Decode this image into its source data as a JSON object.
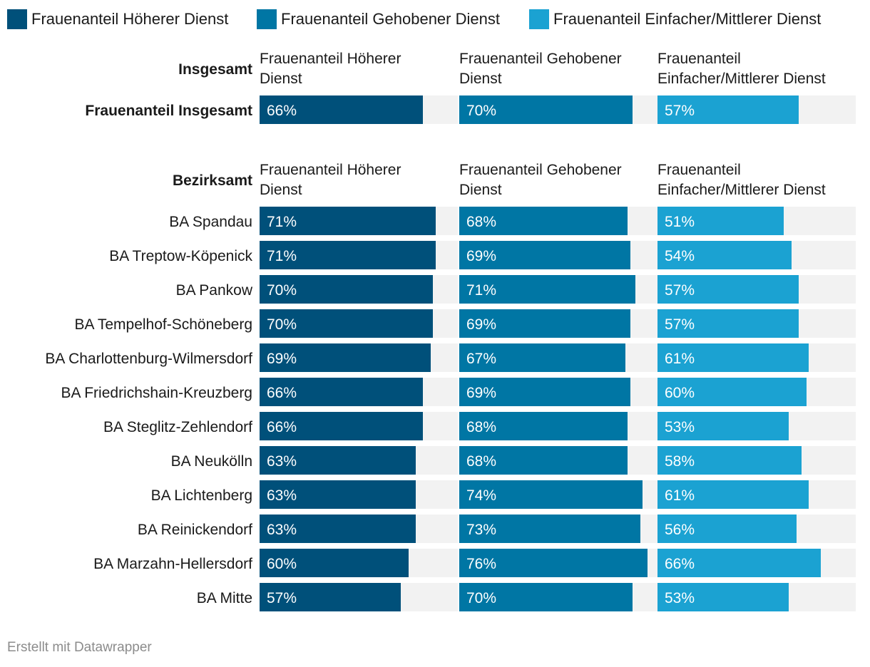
{
  "legend": [
    {
      "label": "Frauenanteil Höherer Dienst",
      "color": "#00507a"
    },
    {
      "label": "Frauenanteil Gehobener Dienst",
      "color": "#0076a4"
    },
    {
      "label": "Frauenanteil Einfacher/Mittlerer Dienst",
      "color": "#1ba2d2"
    }
  ],
  "footer": "Erstellt mit Datawrapper",
  "chart_data": {
    "type": "bar",
    "orientation": "horizontal",
    "value_suffix": "%",
    "xlim": [
      0,
      80
    ],
    "background_color": "#f2f2f2",
    "series": [
      {
        "name": "Frauenanteil Höherer Dienst",
        "header": [
          "Frauenanteil Höherer",
          "Dienst"
        ],
        "color": "#00507a"
      },
      {
        "name": "Frauenanteil Gehobener Dienst",
        "header": [
          "Frauenanteil Gehobener",
          "Dienst"
        ],
        "color": "#0076a4"
      },
      {
        "name": "Frauenanteil Einfacher/Mittlerer Dienst",
        "header": [
          "Frauenanteil",
          "Einfacher/Mittlerer Dienst"
        ],
        "color": "#1ba2d2"
      }
    ],
    "groups": [
      {
        "title": "Insgesamt",
        "rows": [
          {
            "label": "Frauenanteil Insgesamt",
            "bold": true,
            "values": [
              66,
              70,
              57
            ]
          }
        ]
      },
      {
        "title": "Bezirksamt",
        "rows": [
          {
            "label": "BA Spandau",
            "values": [
              71,
              68,
              51
            ]
          },
          {
            "label": "BA Treptow-Köpenick",
            "values": [
              71,
              69,
              54
            ]
          },
          {
            "label": "BA Pankow",
            "values": [
              70,
              71,
              57
            ]
          },
          {
            "label": "BA Tempelhof-Schöneberg",
            "values": [
              70,
              69,
              57
            ]
          },
          {
            "label": "BA Charlottenburg-Wilmersdorf",
            "values": [
              69,
              67,
              61
            ]
          },
          {
            "label": "BA Friedrichshain-Kreuzberg",
            "values": [
              66,
              69,
              60
            ]
          },
          {
            "label": "BA Steglitz-Zehlendorf",
            "values": [
              66,
              68,
              53
            ]
          },
          {
            "label": "BA Neukölln",
            "values": [
              63,
              68,
              58
            ]
          },
          {
            "label": "BA Lichtenberg",
            "values": [
              63,
              74,
              61
            ]
          },
          {
            "label": "BA Reinickendorf",
            "values": [
              63,
              73,
              56
            ]
          },
          {
            "label": "BA Marzahn-Hellersdorf",
            "values": [
              60,
              76,
              66
            ]
          },
          {
            "label": "BA Mitte",
            "values": [
              57,
              70,
              53
            ]
          }
        ]
      }
    ]
  }
}
